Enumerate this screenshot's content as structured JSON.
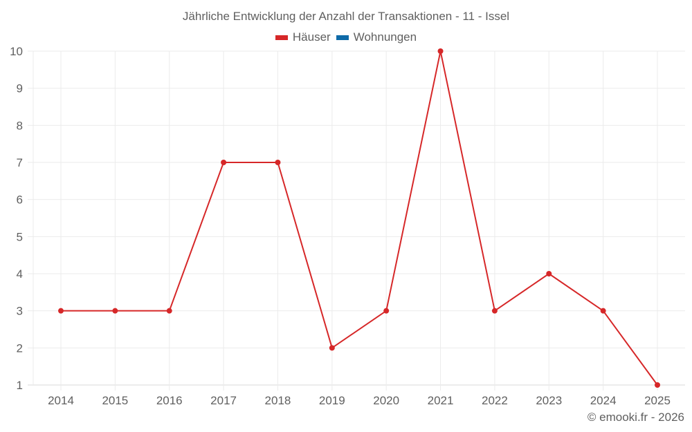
{
  "title": "Jährliche Entwicklung der Anzahl der Transaktionen - 11 - Issel",
  "legend": [
    {
      "label": "Häuser",
      "color": "#d62728"
    },
    {
      "label": "Wohnungen",
      "color": "#0e6aa8"
    }
  ],
  "credit": "© emooki.fr - 2026",
  "chart_data": {
    "type": "line",
    "title": "Jährliche Entwicklung der Anzahl der Transaktionen - 11 - Issel",
    "xlabel": "",
    "ylabel": "",
    "categories": [
      "2014",
      "2015",
      "2016",
      "2017",
      "2018",
      "2019",
      "2020",
      "2021",
      "2022",
      "2023",
      "2024",
      "2025"
    ],
    "series": [
      {
        "name": "Häuser",
        "color": "#d62728",
        "values": [
          3,
          3,
          3,
          7,
          7,
          2,
          3,
          10,
          3,
          4,
          3,
          1
        ]
      },
      {
        "name": "Wohnungen",
        "color": "#0e6aa8",
        "values": []
      }
    ],
    "ylim": [
      1,
      10
    ],
    "yticks": [
      1,
      2,
      3,
      4,
      5,
      6,
      7,
      8,
      9,
      10
    ],
    "grid": true,
    "legend_position": "top"
  }
}
